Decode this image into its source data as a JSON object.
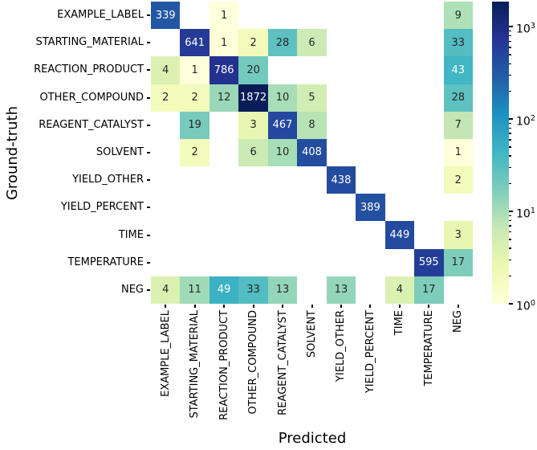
{
  "chart_data": {
    "type": "heatmap",
    "title": "",
    "xlabel": "Predicted",
    "ylabel": "Ground-truth",
    "categories": [
      "EXAMPLE_LABEL",
      "STARTING_MATERIAL",
      "REACTION_PRODUCT",
      "OTHER_COMPOUND",
      "REAGENT_CATALYST",
      "SOLVENT",
      "YIELD_OTHER",
      "YIELD_PERCENT",
      "TIME",
      "TEMPERATURE",
      "NEG"
    ],
    "matrix": [
      [
        339,
        null,
        1,
        null,
        null,
        null,
        null,
        null,
        null,
        null,
        9
      ],
      [
        null,
        641,
        1,
        2,
        28,
        6,
        null,
        null,
        null,
        null,
        33
      ],
      [
        4,
        1,
        786,
        20,
        null,
        null,
        null,
        null,
        null,
        null,
        43
      ],
      [
        2,
        2,
        12,
        1872,
        10,
        5,
        null,
        null,
        null,
        null,
        28
      ],
      [
        null,
        19,
        null,
        3,
        467,
        8,
        null,
        null,
        null,
        null,
        7
      ],
      [
        null,
        2,
        null,
        6,
        10,
        408,
        null,
        null,
        null,
        null,
        1
      ],
      [
        null,
        null,
        null,
        null,
        null,
        null,
        438,
        null,
        null,
        null,
        2
      ],
      [
        null,
        null,
        null,
        null,
        null,
        null,
        null,
        389,
        null,
        null,
        null
      ],
      [
        null,
        null,
        null,
        null,
        null,
        null,
        null,
        null,
        449,
        null,
        3
      ],
      [
        null,
        null,
        null,
        null,
        null,
        null,
        null,
        null,
        null,
        595,
        17
      ],
      [
        4,
        11,
        49,
        33,
        13,
        null,
        13,
        null,
        4,
        17,
        null
      ]
    ],
    "scale": "log",
    "vmin": 1,
    "vmax": 1872,
    "colormap": "YlGnBu",
    "colormap_stops": [
      "#ffffd9",
      "#edf8b1",
      "#c7e9b4",
      "#7fcdbb",
      "#41b6c4",
      "#1d91c0",
      "#225ea8",
      "#253494",
      "#081d58"
    ],
    "empty_cell_color": "#ffffff",
    "annotation_text_colors": {
      "on_dark": "#ffffff",
      "on_light": "#262626"
    },
    "luminance_threshold": 0.408,
    "legend_position": "right",
    "grid": "off",
    "colorbar_tick_exponents": [
      0,
      1,
      2,
      3
    ]
  }
}
